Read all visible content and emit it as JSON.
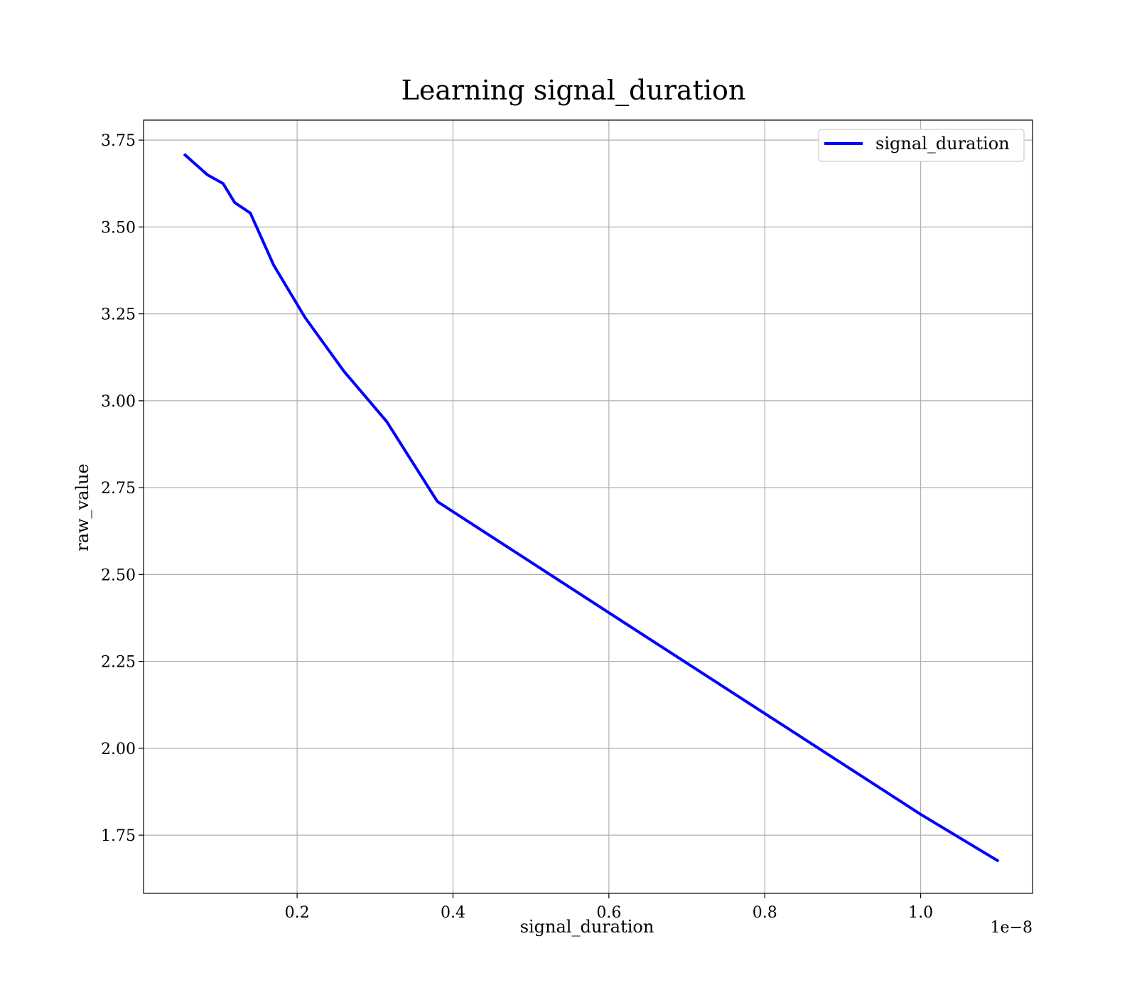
{
  "chart_data": {
    "type": "line",
    "title": "Learning signal_duration",
    "xlabel": "signal_duration",
    "ylabel": "raw_value",
    "x_offset_label": "1e−8",
    "xlim": [
      0.003,
      1.1435
    ],
    "ylim": [
      1.5825,
      3.8075
    ],
    "xticks": [
      0.2,
      0.4,
      0.6,
      0.8,
      1.0
    ],
    "xtick_labels": [
      "0.2",
      "0.4",
      "0.6",
      "0.8",
      "1.0"
    ],
    "yticks": [
      1.75,
      2.0,
      2.25,
      2.5,
      2.75,
      3.0,
      3.25,
      3.5,
      3.75
    ],
    "ytick_labels": [
      "1.75",
      "2.00",
      "2.25",
      "2.50",
      "2.75",
      "3.00",
      "3.25",
      "3.50",
      "3.75"
    ],
    "grid": true,
    "legend_position": "top-right",
    "series": [
      {
        "name": "signal_duration",
        "color": "#0000ff",
        "x": [
          0.055,
          0.085,
          0.105,
          0.12,
          0.14,
          0.17,
          0.21,
          0.26,
          0.315,
          0.38,
          0.6,
          0.8,
          1.0,
          1.1
        ],
        "y": [
          3.71,
          3.65,
          3.625,
          3.57,
          3.54,
          3.39,
          3.24,
          3.085,
          2.94,
          2.71,
          2.39,
          2.1,
          1.81,
          1.675
        ]
      }
    ]
  }
}
